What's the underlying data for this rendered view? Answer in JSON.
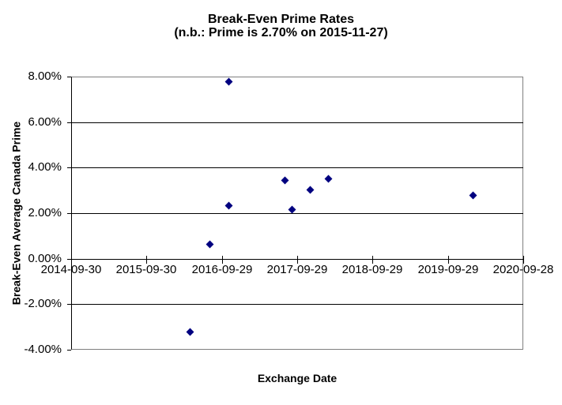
{
  "title": {
    "line1": "Break-Even Prime Rates",
    "line2": "(n.b.: Prime is 2.70% on 2015-11-27)"
  },
  "chart_data": {
    "type": "scatter",
    "title": "Break-Even Prime Rates",
    "subtitle": "(n.b.: Prime is 2.70% on 2015-11-27)",
    "xlabel": "Exchange Date",
    "ylabel": "Break-Even Average Canada Prime",
    "grid": true,
    "legend": false,
    "x_axis": {
      "min": "2014-09-30",
      "max": "2020-09-28",
      "tick_labels": [
        "2014-09-30",
        "2015-09-30",
        "2016-09-29",
        "2017-09-29",
        "2018-09-29",
        "2019-09-29",
        "2020-09-28"
      ]
    },
    "y_axis": {
      "min": -4,
      "max": 8,
      "tick_step": 2,
      "tick_values": [
        8,
        6,
        4,
        2,
        0,
        -2,
        -4
      ],
      "tick_labels": [
        "8.00%",
        "6.00%",
        "4.00%",
        "2.00%",
        "0.00%",
        "-2.00%",
        "-4.00%"
      ]
    },
    "marker": {
      "shape": "diamond",
      "color": "#000080"
    },
    "points": [
      {
        "x": "2016-10-31",
        "y": 7.8
      },
      {
        "x": "2016-10-31",
        "y": 2.35
      },
      {
        "x": "2016-07-31",
        "y": 0.65
      },
      {
        "x": "2016-04-26",
        "y": -3.2
      },
      {
        "x": "2017-07-29",
        "y": 3.45
      },
      {
        "x": "2017-09-02",
        "y": 2.17
      },
      {
        "x": "2017-11-30",
        "y": 3.04
      },
      {
        "x": "2018-02-26",
        "y": 3.52
      },
      {
        "x": "2020-01-27",
        "y": 2.81
      }
    ],
    "colors": {
      "marker": "#000080",
      "gridline": "#000000",
      "plot_border": "#808080",
      "text": "#000000",
      "background": "#ffffff"
    }
  }
}
